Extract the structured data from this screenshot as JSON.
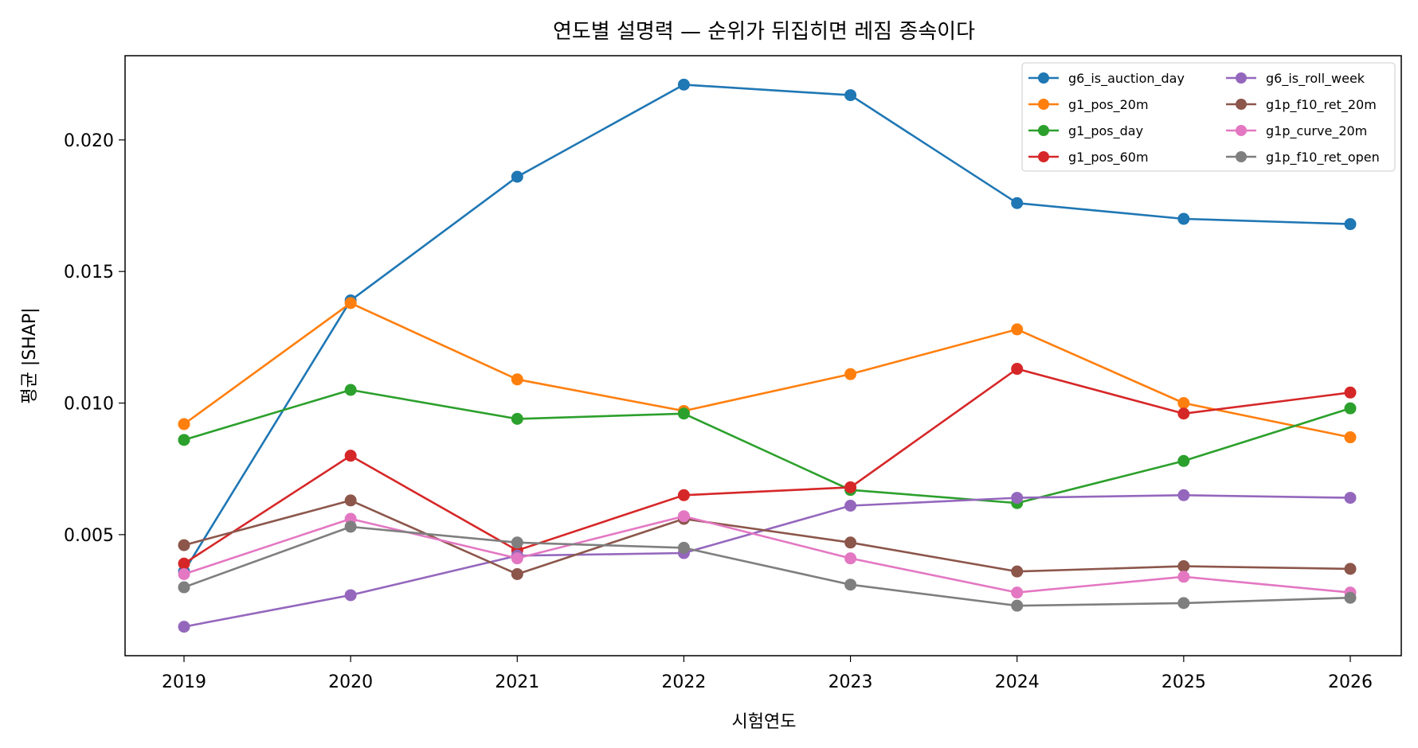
{
  "chart_data": {
    "type": "line",
    "title": "연도별 설명력 — 순위가 뒤집히면 레짐 종속이다",
    "xlabel": "시험연도",
    "ylabel": "평균 |SHAP|",
    "x": [
      "2019",
      "2020",
      "2021",
      "2022",
      "2023",
      "2024",
      "2025",
      "2026"
    ],
    "ylim": [
      0.0004,
      0.0232
    ],
    "yticks": [
      "0.005",
      "0.010",
      "0.015",
      "0.020"
    ],
    "ytick_values": [
      0.005,
      0.01,
      0.015,
      0.02
    ],
    "grid": false,
    "legend_position": "top-right",
    "series": [
      {
        "name": "g6_is_auction_day",
        "color": "#1f77b4",
        "values": [
          0.0036,
          0.0139,
          0.0186,
          0.0221,
          0.0217,
          0.0176,
          0.017,
          0.0168
        ]
      },
      {
        "name": "g1_pos_20m",
        "color": "#ff7f0e",
        "values": [
          0.0092,
          0.0138,
          0.0109,
          0.0097,
          0.0111,
          0.0128,
          0.01,
          0.0087
        ]
      },
      {
        "name": "g1_pos_day",
        "color": "#2ca02c",
        "values": [
          0.0086,
          0.0105,
          0.0094,
          0.0096,
          0.0067,
          0.0062,
          0.0078,
          0.0098
        ]
      },
      {
        "name": "g1_pos_60m",
        "color": "#d62728",
        "values": [
          0.0039,
          0.008,
          0.0044,
          0.0065,
          0.0068,
          0.0113,
          0.0096,
          0.0104
        ]
      },
      {
        "name": "g6_is_roll_week",
        "color": "#9467bd",
        "values": [
          0.0015,
          0.0027,
          0.0042,
          0.0043,
          0.0061,
          0.0064,
          0.0065,
          0.0064
        ]
      },
      {
        "name": "g1p_f10_ret_20m",
        "color": "#8c564b",
        "values": [
          0.0046,
          0.0063,
          0.0035,
          0.0056,
          0.0047,
          0.0036,
          0.0038,
          0.0037
        ]
      },
      {
        "name": "g1p_curve_20m",
        "color": "#e377c2",
        "values": [
          0.0035,
          0.0056,
          0.0041,
          0.0057,
          0.0041,
          0.0028,
          0.0034,
          0.0028
        ]
      },
      {
        "name": "g1p_f10_ret_open",
        "color": "#7f7f7f",
        "values": [
          0.003,
          0.0053,
          0.0047,
          0.0045,
          0.0031,
          0.0023,
          0.0024,
          0.0026
        ]
      }
    ]
  }
}
